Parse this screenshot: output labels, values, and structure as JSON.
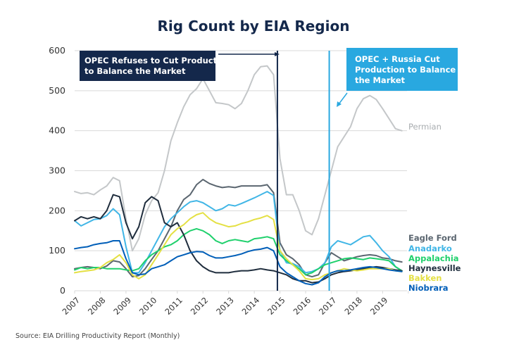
{
  "chart_data": {
    "type": "line",
    "title": "Rig Count by EIA Region",
    "xlabel": "",
    "ylabel": "",
    "ylim": [
      0,
      600
    ],
    "yticks": [
      0,
      100,
      200,
      300,
      400,
      500,
      600
    ],
    "xlim": [
      2007,
      2019.95
    ],
    "xticks": [
      "2007",
      "2008",
      "2009",
      "2010",
      "2011",
      "2012",
      "2013",
      "2014",
      "2015",
      "2016",
      "2017",
      "2018",
      "2019"
    ],
    "grid": true,
    "legend": "right-end-labels",
    "x": [
      2007.0,
      2007.25,
      2007.5,
      2007.75,
      2008.0,
      2008.25,
      2008.5,
      2008.75,
      2009.0,
      2009.25,
      2009.5,
      2009.75,
      2010.0,
      2010.25,
      2010.5,
      2010.75,
      2011.0,
      2011.25,
      2011.5,
      2011.75,
      2012.0,
      2012.25,
      2012.5,
      2012.75,
      2013.0,
      2013.25,
      2013.5,
      2013.75,
      2014.0,
      2014.25,
      2014.5,
      2014.75,
      2015.0,
      2015.25,
      2015.5,
      2015.75,
      2016.0,
      2016.25,
      2016.5,
      2016.75,
      2017.0,
      2017.25,
      2017.5,
      2017.75,
      2018.0,
      2018.25,
      2018.5,
      2018.75,
      2019.0,
      2019.25,
      2019.5,
      2019.75
    ],
    "series": [
      {
        "name": "Permian",
        "color": "#c4c7c9",
        "values": [
          248,
          243,
          245,
          240,
          252,
          262,
          283,
          275,
          180,
          100,
          130,
          190,
          225,
          245,
          300,
          375,
          420,
          460,
          490,
          505,
          530,
          500,
          470,
          468,
          465,
          455,
          468,
          500,
          540,
          560,
          562,
          540,
          330,
          240,
          240,
          200,
          150,
          140,
          180,
          240,
          300,
          360,
          385,
          410,
          455,
          480,
          488,
          478,
          455,
          430,
          405,
          400
        ]
      },
      {
        "name": "Eagle Ford",
        "color": "#5b6670",
        "values": [
          55,
          58,
          60,
          58,
          55,
          62,
          75,
          72,
          55,
          35,
          38,
          55,
          78,
          100,
          130,
          160,
          200,
          228,
          240,
          265,
          278,
          268,
          262,
          258,
          260,
          258,
          262,
          262,
          262,
          262,
          265,
          245,
          120,
          90,
          80,
          65,
          40,
          35,
          40,
          70,
          95,
          85,
          75,
          80,
          85,
          88,
          90,
          88,
          82,
          80,
          75,
          72
        ]
      },
      {
        "name": "Anadarko",
        "color": "#41b6e6",
        "values": [
          175,
          162,
          170,
          178,
          180,
          188,
          205,
          190,
          110,
          45,
          45,
          70,
          100,
          130,
          160,
          180,
          195,
          210,
          222,
          225,
          220,
          210,
          200,
          205,
          215,
          212,
          218,
          225,
          232,
          240,
          248,
          238,
          100,
          70,
          68,
          60,
          45,
          48,
          55,
          70,
          110,
          125,
          120,
          115,
          125,
          135,
          138,
          120,
          100,
          85,
          60,
          50
        ]
      },
      {
        "name": "Appalachia",
        "color": "#1fd06c",
        "values": [
          52,
          58,
          55,
          58,
          58,
          55,
          55,
          55,
          52,
          50,
          55,
          75,
          90,
          100,
          110,
          115,
          125,
          140,
          150,
          155,
          150,
          140,
          125,
          118,
          125,
          128,
          125,
          122,
          130,
          132,
          135,
          130,
          90,
          75,
          65,
          55,
          40,
          45,
          55,
          65,
          70,
          75,
          80,
          82,
          80,
          78,
          82,
          80,
          78,
          75,
          60,
          50
        ]
      },
      {
        "name": "Haynesville",
        "color": "#1f2d3d",
        "values": [
          175,
          185,
          180,
          185,
          180,
          200,
          240,
          235,
          170,
          130,
          160,
          220,
          235,
          225,
          170,
          160,
          170,
          140,
          100,
          75,
          60,
          50,
          45,
          45,
          45,
          48,
          50,
          50,
          52,
          55,
          52,
          50,
          45,
          40,
          30,
          25,
          25,
          20,
          22,
          30,
          40,
          45,
          48,
          50,
          52,
          55,
          58,
          60,
          58,
          55,
          52,
          50
        ]
      },
      {
        "name": "Bakken",
        "color": "#e4e043",
        "values": [
          45,
          48,
          50,
          52,
          58,
          70,
          78,
          90,
          70,
          40,
          30,
          40,
          65,
          90,
          115,
          140,
          155,
          165,
          180,
          190,
          195,
          180,
          170,
          165,
          160,
          162,
          168,
          172,
          178,
          182,
          188,
          178,
          100,
          80,
          65,
          50,
          30,
          28,
          30,
          40,
          45,
          50,
          55,
          52,
          50,
          52,
          55,
          55,
          55,
          55,
          50,
          48
        ]
      },
      {
        "name": "Niobrara",
        "color": "#005eb8",
        "values": [
          105,
          108,
          110,
          115,
          118,
          120,
          125,
          125,
          80,
          45,
          40,
          42,
          55,
          60,
          65,
          75,
          85,
          90,
          95,
          98,
          97,
          88,
          82,
          82,
          85,
          88,
          92,
          98,
          102,
          104,
          108,
          100,
          60,
          45,
          35,
          25,
          18,
          15,
          20,
          35,
          45,
          50,
          50,
          52,
          55,
          58,
          60,
          58,
          55,
          52,
          50,
          48
        ]
      }
    ],
    "annotations": [
      {
        "text_lines": [
          "OPEC Refuses to Cut Production",
          "to Balance the Market"
        ],
        "x": 2014.9,
        "color": "#14284b"
      },
      {
        "text_lines": [
          "OPEC + Russia Cut",
          "Production to Balance",
          "the Market"
        ],
        "x": 2016.92,
        "color": "#29a8e0"
      }
    ],
    "source": "Source: EIA Drilling Productivity Report (Monthly)"
  }
}
